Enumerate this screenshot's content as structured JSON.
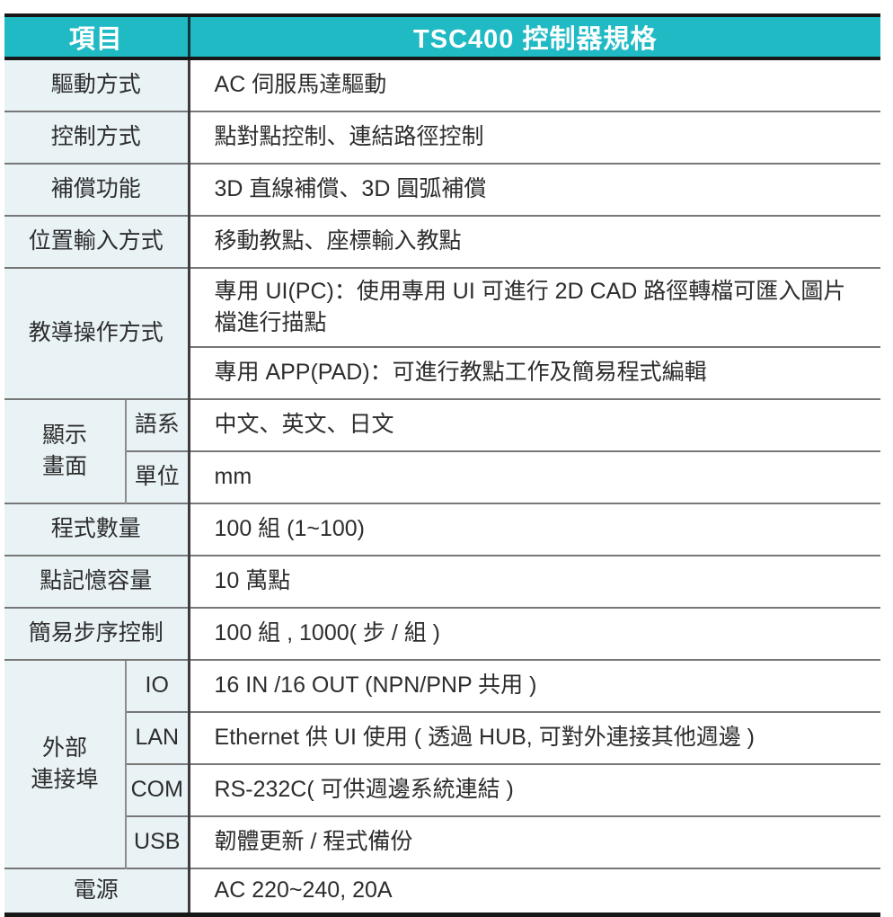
{
  "table": {
    "header": {
      "item_col": "項目",
      "spec_col": "TSC400 控制器規格"
    },
    "rows": {
      "drive": {
        "label": "驅動方式",
        "value": "AC 伺服馬達驅動"
      },
      "control": {
        "label": "控制方式",
        "value": "點對點控制、連結路徑控制"
      },
      "compensation": {
        "label": "補償功能",
        "value": "3D 直線補償、3D 圓弧補償"
      },
      "position_input": {
        "label": "位置輸入方式",
        "value": "移動教點、座標輸入教點"
      },
      "teaching": {
        "label": "教導操作方式",
        "pc_value": "專用 UI(PC)：使用專用 UI 可進行 2D CAD 路徑轉檔可匯入圖片檔進行描點",
        "app_value": "專用 APP(PAD)：可進行教點工作及簡易程式編輯"
      },
      "display": {
        "label_line1": "顯示",
        "label_line2": "畫面",
        "lang_label": "語系",
        "lang_value": "中文、英文、日文",
        "unit_label": "單位",
        "unit_value": "mm"
      },
      "programs": {
        "label": "程式數量",
        "value": "100 組 (1~100)"
      },
      "point_memory": {
        "label": "點記憶容量",
        "value": "10 萬點"
      },
      "step_control": {
        "label": "簡易步序控制",
        "value": "100 組 , 1000( 步 / 組 )"
      },
      "external_ports": {
        "label_line1": "外部",
        "label_line2": "連接埠",
        "io_label": "IO",
        "io_value": "16 IN /16 OUT (NPN/PNP 共用 )",
        "lan_label": "LAN",
        "lan_value": "Ethernet 供 UI 使用 ( 透過 HUB, 可對外連接其他週邊 )",
        "com_label": "COM",
        "com_value": "RS-232C( 可供週邊系統連結 )",
        "usb_label": "USB",
        "usb_value": "韌體更新 / 程式備份"
      },
      "power": {
        "label": "電源",
        "value": "AC 220~240, 20A"
      }
    },
    "colors": {
      "header_bg": "#20bac5",
      "header_text": "#ffffff",
      "label_bg": "#e9f3f6",
      "thick_line": "#171717",
      "thin_line": "#777777",
      "divider": "#3c3c3c"
    }
  }
}
